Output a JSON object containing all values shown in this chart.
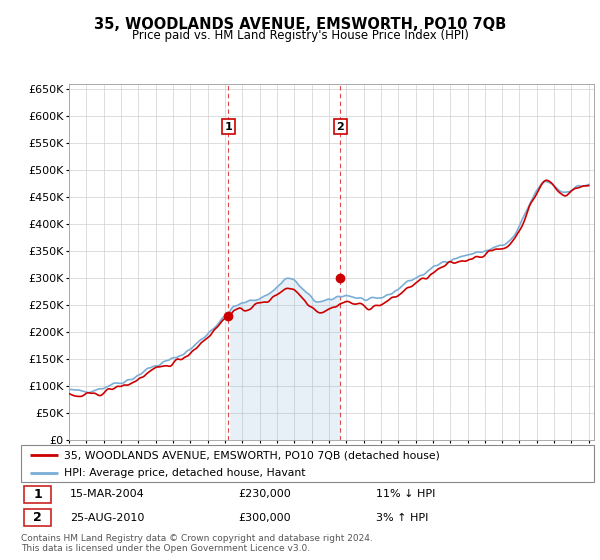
{
  "title": "35, WOODLANDS AVENUE, EMSWORTH, PO10 7QB",
  "subtitle": "Price paid vs. HM Land Registry's House Price Index (HPI)",
  "hpi_color": "#7aaed6",
  "price_color": "#cc0000",
  "sale1_date": "15-MAR-2004",
  "sale1_price": 230000,
  "sale1_hpi_diff": "11% ↓ HPI",
  "sale2_date": "25-AUG-2010",
  "sale2_price": 300000,
  "sale2_hpi_diff": "3% ↑ HPI",
  "legend_line1": "35, WOODLANDS AVENUE, EMSWORTH, PO10 7QB (detached house)",
  "legend_line2": "HPI: Average price, detached house, Havant",
  "footer": "Contains HM Land Registry data © Crown copyright and database right 2024.\nThis data is licensed under the Open Government Licence v3.0.",
  "ylim": [
    0,
    660000
  ],
  "yticks": [
    0,
    50000,
    100000,
    150000,
    200000,
    250000,
    300000,
    350000,
    400000,
    450000,
    500000,
    550000,
    600000,
    650000
  ],
  "sale1_x": 2004.2,
  "sale2_x": 2010.65,
  "xmin": 1995,
  "xmax": 2025.3,
  "fill_alpha": 0.18,
  "hpi_linewidth": 1.2,
  "price_linewidth": 1.2
}
